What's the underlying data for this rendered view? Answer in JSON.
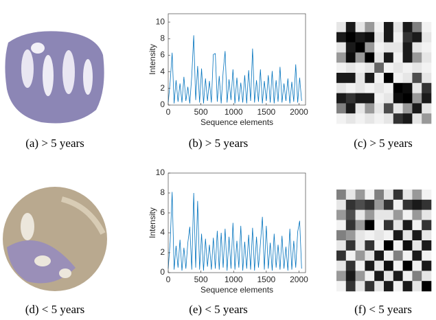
{
  "captions": [
    "(a) > 5 years",
    "(b) > 5 years",
    "(c) > 5 years",
    "(d) < 5 years",
    "(e) < 5 years",
    "(f) < 5 years"
  ],
  "chart_data": [
    {
      "type": "line",
      "xlabel": "Sequence elements",
      "ylabel": "Intensity",
      "x": [
        0,
        30,
        60,
        90,
        120,
        150,
        180,
        210,
        240,
        270,
        300,
        330,
        360,
        390,
        420,
        450,
        480,
        510,
        540,
        570,
        600,
        630,
        660,
        690,
        720,
        750,
        780,
        810,
        840,
        870,
        900,
        930,
        960,
        990,
        1020,
        1050,
        1080,
        1110,
        1140,
        1170,
        1200,
        1230,
        1260,
        1290,
        1320,
        1350,
        1380,
        1410,
        1440,
        1470,
        1500,
        1530,
        1560,
        1590,
        1620,
        1650,
        1680,
        1710,
        1740,
        1770,
        1800,
        1830,
        1860,
        1890,
        1920,
        1950,
        1980,
        2010,
        2040
      ],
      "series": [
        {
          "color": "#0072bd",
          "values": [
            0.3,
            2.8,
            6.3,
            0.2,
            3.0,
            0.4,
            2.6,
            0.3,
            3.4,
            0.5,
            2.2,
            0.2,
            3.5,
            8.4,
            0.6,
            4.7,
            0.3,
            4.4,
            0.2,
            3.2,
            0.5,
            2.9,
            0.3,
            6.1,
            6.2,
            0.4,
            3.5,
            0.2,
            4.0,
            6.5,
            0.3,
            3.1,
            0.6,
            4.3,
            0.2,
            3.3,
            0.4,
            2.7,
            0.3,
            3.6,
            0.2,
            4.2,
            0.5,
            6.8,
            0.3,
            3.0,
            0.4,
            4.3,
            0.2,
            2.9,
            0.5,
            3.6,
            0.3,
            4.1,
            0.2,
            3.0,
            0.4,
            4.6,
            0.3,
            2.6,
            0.5,
            3.2,
            0.2,
            2.8,
            0.4,
            4.9,
            0.3,
            3.3,
            0.5
          ]
        }
      ],
      "xlim": [
        0,
        2100
      ],
      "ylim": [
        0,
        11
      ],
      "xticks": [
        0,
        500,
        1000,
        1500,
        2000
      ],
      "yticks": [
        0,
        2,
        4,
        6,
        8,
        10
      ]
    },
    {
      "type": "heatmap",
      "matrix": [
        [
          0.9,
          0.1,
          0.9,
          0.6,
          0.95,
          0.1,
          0.9,
          0.1,
          0.5,
          0.95
        ],
        [
          0.1,
          0,
          0.1,
          0.05,
          0.9,
          0.1,
          0.95,
          0.2,
          0.1,
          0.9
        ],
        [
          0.9,
          0.1,
          0,
          0.6,
          0.95,
          0.9,
          0.9,
          0.1,
          0.9,
          0.95
        ],
        [
          0.6,
          0.05,
          0.6,
          0,
          0.9,
          0.1,
          0.95,
          0.1,
          0.6,
          0.9
        ],
        [
          0.95,
          0.9,
          0.95,
          0.9,
          0.4,
          0.95,
          0.9,
          0.95,
          0.9,
          0.95
        ],
        [
          0.1,
          0.1,
          0.9,
          0.1,
          0.95,
          0,
          0.95,
          0.9,
          0.3,
          0.9
        ],
        [
          0.9,
          0.95,
          0.9,
          0.95,
          0.9,
          0.95,
          0,
          0.05,
          0.9,
          0.2
        ],
        [
          0.1,
          0.2,
          0.1,
          0.1,
          0.95,
          0.9,
          0.05,
          0,
          0.6,
          0.1
        ],
        [
          0.5,
          0.1,
          0.9,
          0.6,
          0.9,
          0.3,
          0.9,
          0.6,
          0.1,
          0.9
        ],
        [
          0.95,
          0.9,
          0.95,
          0.9,
          0.95,
          0.9,
          0.2,
          0.1,
          0.9,
          0.6
        ]
      ]
    },
    {
      "type": "line",
      "xlabel": "Sequence elements",
      "ylabel": "Intensity",
      "x": [
        0,
        30,
        60,
        90,
        120,
        150,
        180,
        210,
        240,
        270,
        300,
        330,
        360,
        390,
        420,
        450,
        480,
        510,
        540,
        570,
        600,
        630,
        660,
        690,
        720,
        750,
        780,
        810,
        840,
        870,
        900,
        930,
        960,
        990,
        1020,
        1050,
        1080,
        1110,
        1140,
        1170,
        1200,
        1230,
        1260,
        1290,
        1320,
        1350,
        1380,
        1410,
        1440,
        1470,
        1500,
        1530,
        1560,
        1590,
        1620,
        1650,
        1680,
        1710,
        1740,
        1770,
        1800,
        1830,
        1860,
        1890,
        1920,
        1950,
        1980,
        2010,
        2040
      ],
      "series": [
        {
          "color": "#0072bd",
          "values": [
            0.4,
            3.1,
            8.1,
            0.3,
            2.7,
            0.5,
            3.3,
            0.2,
            2.5,
            0.4,
            3.0,
            4.6,
            0.3,
            8.0,
            0.5,
            7.2,
            0.3,
            3.9,
            0.2,
            3.4,
            0.6,
            2.8,
            0.3,
            3.5,
            0.4,
            4.2,
            0.3,
            4.0,
            0.5,
            4.4,
            0.2,
            3.6,
            0.4,
            5.0,
            0.3,
            3.2,
            0.5,
            4.7,
            0.2,
            3.1,
            0.4,
            3.8,
            0.3,
            4.5,
            0.2,
            3.6,
            0.5,
            2.9,
            5.6,
            0.3,
            4.7,
            0.4,
            3.0,
            0.2,
            3.9,
            0.5,
            2.8,
            0.3,
            3.7,
            0.4,
            2.6,
            0.2,
            4.4,
            0.3,
            3.2,
            0.5,
            4.1,
            5.2,
            0.4
          ]
        }
      ],
      "xlim": [
        0,
        2100
      ],
      "ylim": [
        0,
        10
      ],
      "xticks": [
        0,
        500,
        1000,
        1500,
        2000
      ],
      "yticks": [
        0,
        2,
        4,
        6,
        8,
        10
      ]
    },
    {
      "type": "heatmap",
      "matrix": [
        [
          0.5,
          0.9,
          0.6,
          0.95,
          0.5,
          0.9,
          0.2,
          0.9,
          0.6,
          0.95
        ],
        [
          0.9,
          0.2,
          0.3,
          0.2,
          0.6,
          0.2,
          0.95,
          0.2,
          0.1,
          0.2
        ],
        [
          0.6,
          0.3,
          0.9,
          0.6,
          0.9,
          0.9,
          0.6,
          0.95,
          0.6,
          0.9
        ],
        [
          0.95,
          0.2,
          0.6,
          0,
          0.95,
          0.2,
          0.9,
          0.1,
          0.95,
          0.2
        ],
        [
          0.5,
          0.6,
          0.9,
          0.95,
          0.9,
          0.95,
          0.1,
          0.9,
          0.1,
          0.9
        ],
        [
          0.9,
          0.2,
          0.9,
          0.2,
          0.95,
          0,
          0.95,
          0.05,
          0.9,
          0.1
        ],
        [
          0.2,
          0.95,
          0.6,
          0.9,
          0.1,
          0.95,
          0.5,
          0.95,
          0.1,
          0.95
        ],
        [
          0.9,
          0.2,
          0.95,
          0.1,
          0.9,
          0.05,
          0.95,
          0,
          0.95,
          0.1
        ],
        [
          0.6,
          0.1,
          0.6,
          0.95,
          0.1,
          0.9,
          0.1,
          0.95,
          0.5,
          0.9
        ],
        [
          0.95,
          0.2,
          0.9,
          0.2,
          0.9,
          0.1,
          0.95,
          0.1,
          0.9,
          0
        ]
      ]
    }
  ]
}
